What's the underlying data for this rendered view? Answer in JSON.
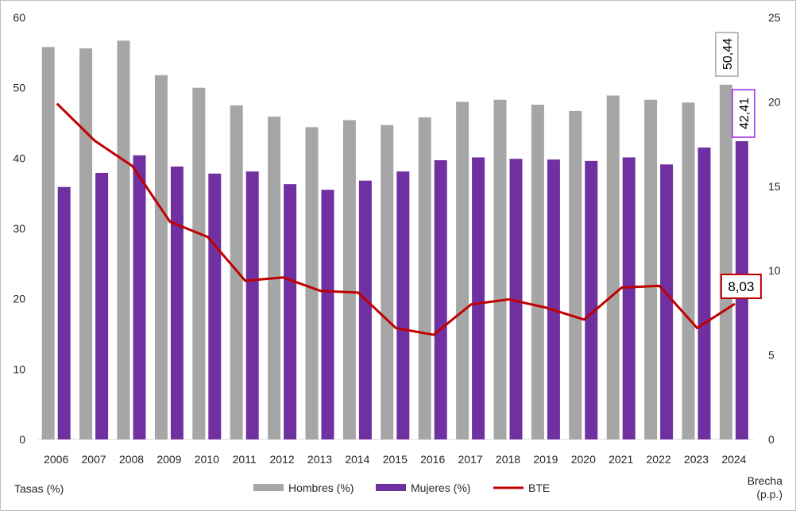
{
  "chart_data": {
    "type": "bar",
    "categories": [
      "2006",
      "2007",
      "2008",
      "2009",
      "2010",
      "2011",
      "2012",
      "2013",
      "2014",
      "2015",
      "2016",
      "2017",
      "2018",
      "2019",
      "2020",
      "2021",
      "2022",
      "2023",
      "2024"
    ],
    "series": [
      {
        "name": "Hombres (%)",
        "type": "bar",
        "axis": "left",
        "color": "#a6a6a6",
        "values": [
          55.8,
          55.6,
          56.7,
          51.8,
          50.0,
          47.5,
          45.9,
          44.4,
          45.4,
          44.7,
          45.8,
          48.0,
          48.3,
          47.6,
          46.7,
          48.9,
          48.3,
          47.9,
          50.44
        ]
      },
      {
        "name": "Mujeres (%)",
        "type": "bar",
        "axis": "left",
        "color": "#7030a0",
        "values": [
          35.9,
          37.9,
          40.4,
          38.8,
          37.8,
          38.1,
          36.3,
          35.5,
          36.8,
          38.1,
          39.7,
          40.1,
          39.9,
          39.8,
          39.6,
          40.1,
          39.1,
          41.5,
          42.41
        ]
      },
      {
        "name": "BTE",
        "type": "line",
        "axis": "right",
        "color": "#c00000",
        "values": [
          19.9,
          17.7,
          16.2,
          12.9,
          12.0,
          9.4,
          9.6,
          8.8,
          8.7,
          6.6,
          6.2,
          8.0,
          8.3,
          7.8,
          7.1,
          9.0,
          9.1,
          6.6,
          8.03
        ]
      }
    ],
    "data_labels": {
      "hombres_last": "50,44",
      "mujeres_last": "42,41",
      "bte_last": "8,03"
    },
    "ylabel_left": "Tasas (%)",
    "ylabel_right": "Brecha (p.p.)",
    "ylim_left": [
      0,
      60
    ],
    "yticks_left": [
      "0",
      "10",
      "20",
      "30",
      "40",
      "50",
      "60"
    ],
    "ylim_right": [
      0,
      25
    ],
    "yticks_right": [
      "0",
      "5",
      "10",
      "15",
      "20",
      "25"
    ],
    "grid": false,
    "legend_position": "bottom"
  }
}
